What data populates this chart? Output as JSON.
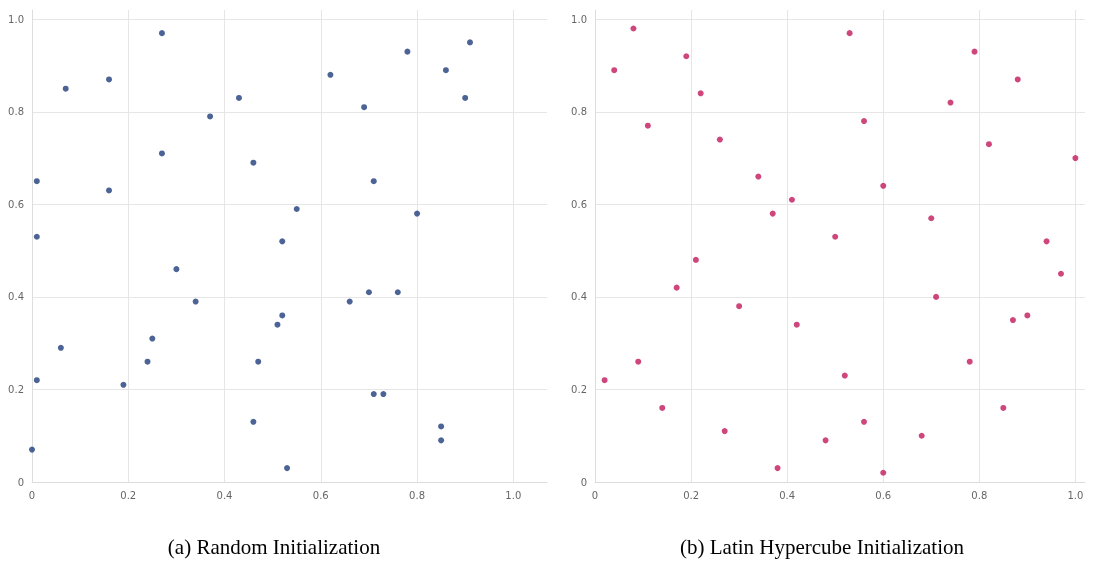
{
  "chart_data": [
    {
      "type": "scatter",
      "title": "(a) Random Initialization",
      "marker": "circle",
      "grid": true,
      "xlim": [
        0,
        1.07
      ],
      "ylim": [
        0,
        1.02
      ],
      "xticks": [
        0,
        0.2,
        0.4,
        0.6,
        0.8,
        {
          "value": 1,
          "label": "1.0"
        }
      ],
      "yticks": [
        0,
        0.2,
        0.4,
        0.6,
        0.8,
        {
          "value": 1,
          "label": "1.0"
        }
      ],
      "series": [
        {
          "color": "#1f3c7a",
          "x": [
            0.0,
            0.01,
            0.01,
            0.01,
            0.06,
            0.07,
            0.16,
            0.16,
            0.19,
            0.24,
            0.25,
            0.27,
            0.27,
            0.3,
            0.34,
            0.37,
            0.43,
            0.46,
            0.46,
            0.47,
            0.51,
            0.52,
            0.52,
            0.53,
            0.55,
            0.62,
            0.66,
            0.69,
            0.7,
            0.71,
            0.71,
            0.73,
            0.76,
            0.78,
            0.8,
            0.85,
            0.85,
            0.86,
            0.9,
            0.91
          ],
          "values": [
            0.07,
            0.53,
            0.22,
            0.65,
            0.29,
            0.85,
            0.63,
            0.87,
            0.21,
            0.26,
            0.31,
            0.71,
            0.97,
            0.46,
            0.39,
            0.79,
            0.83,
            0.13,
            0.69,
            0.26,
            0.34,
            0.36,
            0.52,
            0.03,
            0.59,
            0.88,
            0.39,
            0.81,
            0.41,
            0.65,
            0.19,
            0.19,
            0.41,
            0.93,
            0.58,
            0.12,
            0.09,
            0.89,
            0.83,
            0.95
          ]
        }
      ]
    },
    {
      "type": "scatter",
      "title": "(b) Latin Hypercube Initialization",
      "marker": "circle",
      "grid": true,
      "xlim": [
        0,
        1.02
      ],
      "ylim": [
        0,
        1.02
      ],
      "xticks": [
        0,
        0.2,
        0.4,
        0.6,
        0.8,
        {
          "value": 1,
          "label": "1.0"
        }
      ],
      "yticks": [
        0,
        0.2,
        0.4,
        0.6,
        0.8,
        {
          "value": 1,
          "label": "1.0"
        }
      ],
      "series": [
        {
          "color": "#c2185b",
          "x": [
            0.02,
            0.04,
            0.08,
            0.09,
            0.11,
            0.14,
            0.17,
            0.19,
            0.21,
            0.22,
            0.26,
            0.27,
            0.3,
            0.34,
            0.37,
            0.38,
            0.41,
            0.42,
            0.48,
            0.5,
            0.52,
            0.53,
            0.56,
            0.56,
            0.6,
            0.6,
            0.68,
            0.7,
            0.71,
            0.74,
            0.78,
            0.79,
            0.82,
            0.85,
            0.87,
            0.88,
            0.9,
            0.94,
            0.97,
            1.0
          ],
          "values": [
            0.22,
            0.89,
            0.98,
            0.26,
            0.77,
            0.16,
            0.42,
            0.92,
            0.48,
            0.84,
            0.74,
            0.11,
            0.38,
            0.66,
            0.58,
            0.03,
            0.61,
            0.34,
            0.09,
            0.53,
            0.23,
            0.97,
            0.78,
            0.13,
            0.02,
            0.64,
            0.1,
            0.57,
            0.4,
            0.82,
            0.26,
            0.93,
            0.73,
            0.16,
            0.35,
            0.87,
            0.36,
            0.52,
            0.45,
            0.7
          ]
        }
      ]
    }
  ]
}
